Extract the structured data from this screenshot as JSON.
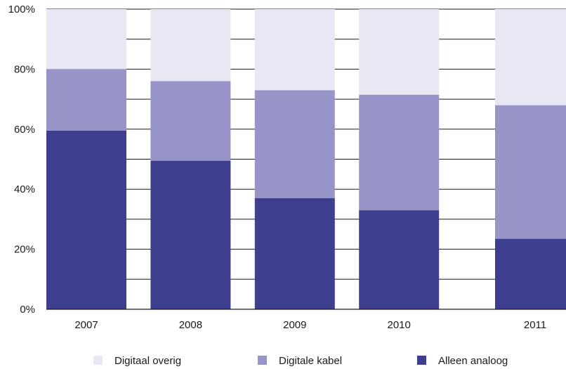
{
  "chart_data": {
    "type": "bar",
    "stacked": true,
    "categories": [
      "2007",
      "2008",
      "2009",
      "2010",
      "2011"
    ],
    "series": [
      {
        "name": "Alleen analoog",
        "values": [
          59.5,
          49.5,
          37,
          33,
          23.5
        ],
        "color": "#3e3f8f"
      },
      {
        "name": "Digitale kabel",
        "values": [
          20.5,
          26.5,
          36,
          38.5,
          44.5
        ],
        "color": "#9795c7"
      },
      {
        "name": "Digitaal overig",
        "values": [
          20,
          24,
          27,
          28.5,
          32
        ],
        "color": "#e8e7f3"
      }
    ],
    "y_ticks": [
      "0%",
      "20%",
      "40%",
      "60%",
      "80%",
      "100%"
    ],
    "ylim": [
      0,
      100
    ],
    "grid": true,
    "legend_position": "bottom",
    "legend_order": [
      "Digitaal overig",
      "Digitale kabel",
      "Alleen analoog"
    ]
  }
}
